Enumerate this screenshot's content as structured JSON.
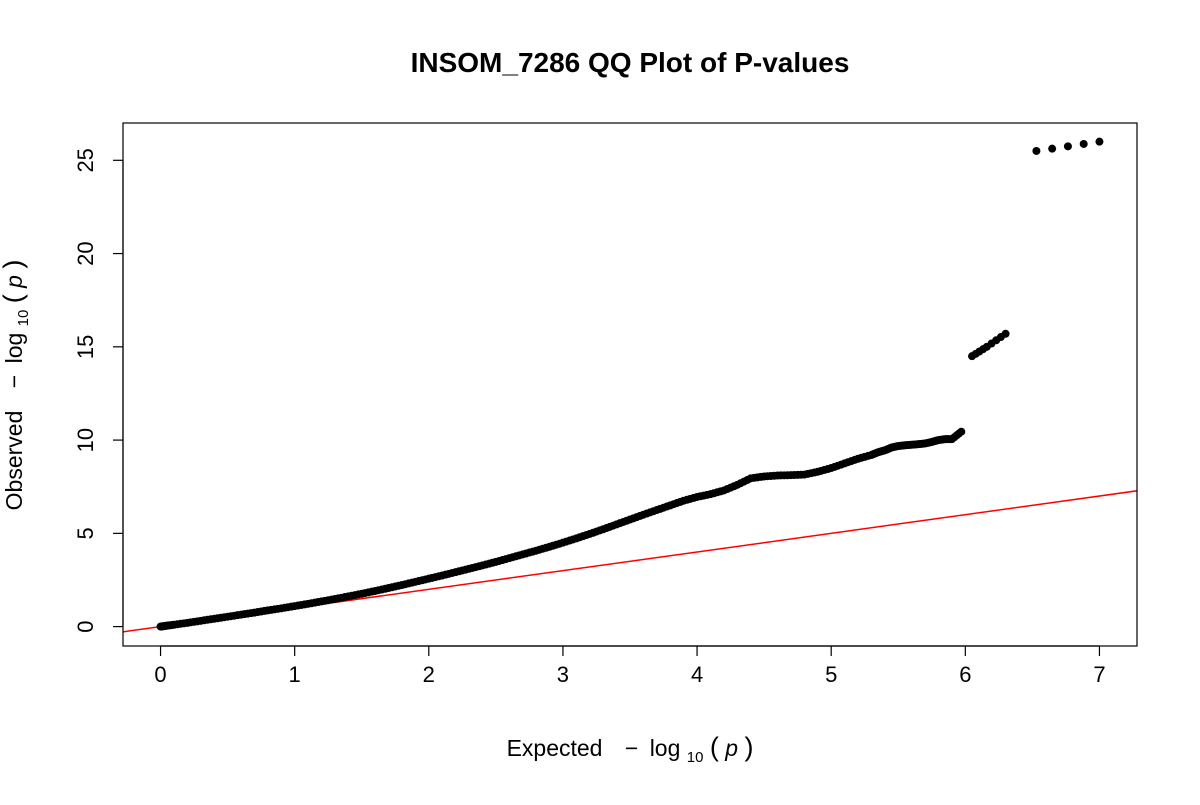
{
  "chart_data": {
    "type": "scatter",
    "title": "INSOM_7286 QQ Plot of P-values",
    "xlabel": {
      "prefix": "Expected",
      "minus": "−",
      "log": "log",
      "sub": "10",
      "open": "(",
      "var": "p",
      "close": ")"
    },
    "ylabel": {
      "prefix": "Observed",
      "minus": "−",
      "log": "log",
      "sub": "10",
      "open": "(",
      "var": "p",
      "close": ")"
    },
    "xlim": [
      -0.28,
      7.28
    ],
    "ylim": [
      -1.04,
      27.0
    ],
    "x_ticks": [
      0,
      1,
      2,
      3,
      4,
      5,
      6,
      7
    ],
    "y_ticks": [
      0,
      5,
      10,
      15,
      20,
      25
    ],
    "point_color": "#000000",
    "reference_line": {
      "slope": 1,
      "intercept": 0,
      "color": "#ff0000"
    },
    "series": [
      {
        "x": [
          0.0,
          0.02,
          0.05,
          0.1,
          0.2,
          0.3,
          0.4,
          0.5,
          0.6,
          0.7,
          0.8,
          0.9,
          1.0,
          1.1,
          1.2,
          1.3,
          1.4,
          1.5,
          1.6,
          1.7,
          1.8,
          1.9,
          2.0,
          2.1,
          2.2,
          2.3,
          2.4,
          2.5,
          2.6,
          2.7,
          2.8,
          2.9,
          3.0,
          3.1,
          3.2,
          3.3,
          3.4,
          3.5,
          3.6,
          3.7,
          3.8,
          3.9,
          4.0,
          4.1,
          4.2,
          4.3,
          4.4,
          4.5,
          4.6,
          4.7,
          4.8,
          4.9,
          5.0,
          5.1,
          5.2,
          5.3,
          5.35,
          5.4,
          5.45,
          5.5,
          5.55,
          5.6,
          5.65,
          5.7,
          5.75,
          5.8,
          5.85,
          5.9,
          5.97,
          6.05,
          6.16,
          6.3,
          6.53,
          7.0
        ],
        "y": [
          0.0,
          0.02,
          0.05,
          0.1,
          0.2,
          0.31,
          0.42,
          0.53,
          0.64,
          0.75,
          0.87,
          0.98,
          1.1,
          1.22,
          1.35,
          1.48,
          1.62,
          1.76,
          1.91,
          2.07,
          2.23,
          2.4,
          2.57,
          2.74,
          2.92,
          3.1,
          3.28,
          3.47,
          3.67,
          3.87,
          4.07,
          4.28,
          4.5,
          4.73,
          4.97,
          5.22,
          5.48,
          5.74,
          6.0,
          6.25,
          6.5,
          6.75,
          6.95,
          7.1,
          7.3,
          7.6,
          7.95,
          8.05,
          8.1,
          8.12,
          8.15,
          8.3,
          8.5,
          8.75,
          9.0,
          9.2,
          9.35,
          9.45,
          9.6,
          9.68,
          9.72,
          9.75,
          9.78,
          9.82,
          9.9,
          10.0,
          10.05,
          10.05,
          10.45,
          14.5,
          15.0,
          15.7,
          25.5,
          26.0
        ]
      }
    ]
  }
}
